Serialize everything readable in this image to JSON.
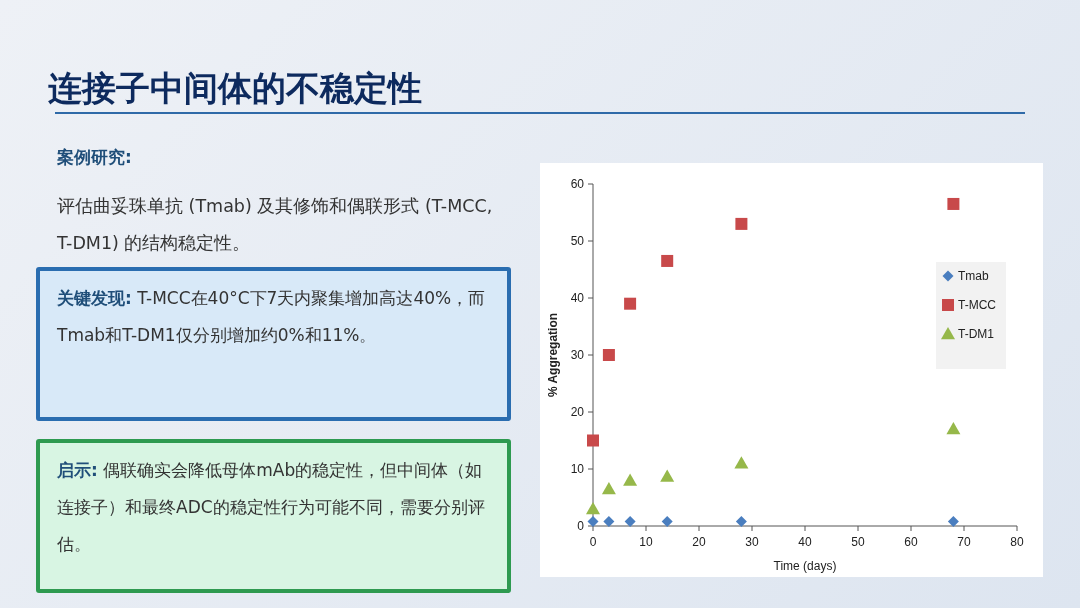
{
  "chart_data": {
    "type": "scatter",
    "title": "连接子中间体的不稳定性",
    "annotations": [
      "案例研究:",
      "评估曲妥珠单抗 (Tmab) 及其修饰和偶联形式 (T-MCC, T-DM1) 的结构稳定性。",
      "**关键发现:** T-MCC在40°C下7天内聚集增加高达40%，而Tmab和T-DM1仅分别增加约0%和11%。",
      "**启示:** 偶联确实会降低母体mAb的稳定性，但中间体（如连接子）和最终ADC的稳定性行为可能不同，需要分别评估。"
    ],
    "xlabel": "Time (days)",
    "ylabel": "% Aggregation",
    "x": [
      0,
      3,
      7,
      14,
      28,
      68
    ],
    "series": [
      {
        "name": "Tmab",
        "color": "#4a7ebf",
        "marker": "diamond",
        "values": [
          0.8,
          0.8,
          0.8,
          0.8,
          0.8,
          0.8
        ]
      },
      {
        "name": "T-MCC",
        "color": "#c8494a",
        "marker": "square",
        "values": [
          15,
          30,
          39,
          46.5,
          53,
          56.5
        ]
      },
      {
        "name": "T-DM1",
        "color": "#96b84a",
        "marker": "triangle",
        "values": [
          3,
          6.5,
          8,
          8.7,
          11,
          17
        ]
      }
    ],
    "xlim": [
      0,
      80
    ],
    "ylim": [
      0,
      60
    ],
    "xticks": [
      0,
      10,
      20,
      30,
      40,
      50,
      60,
      70,
      80
    ],
    "yticks": [
      0,
      10,
      20,
      30,
      40,
      50,
      60
    ],
    "grid": false,
    "legend": "right"
  }
}
